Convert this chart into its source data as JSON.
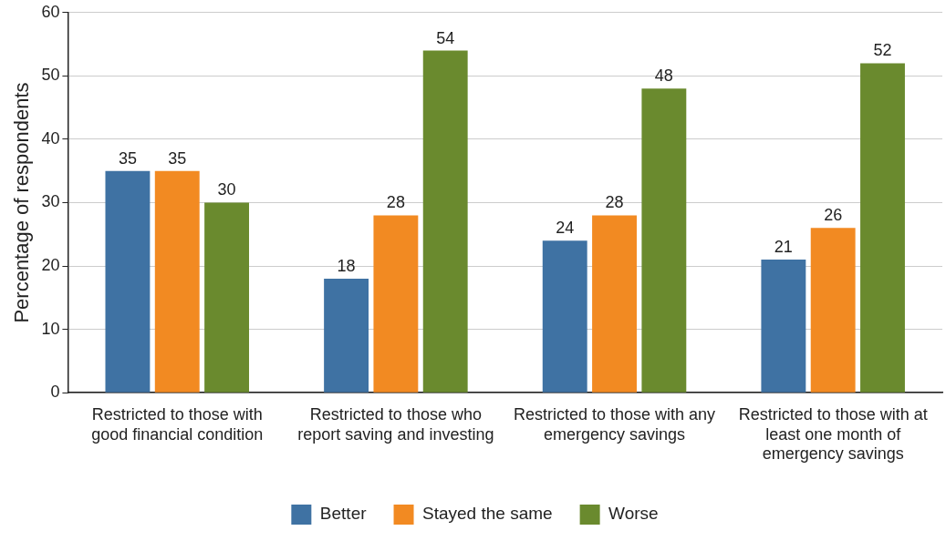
{
  "chart_data": {
    "type": "bar",
    "ylabel": "Percentage of respondents",
    "categories": [
      "Restricted to those with good financial condition",
      "Restricted to those who report saving and investing",
      "Restricted to those with any emergency savings",
      "Restricted to those with at least one month of emergency savings"
    ],
    "series": [
      {
        "name": "Better",
        "color": "#3f72a3",
        "values": [
          35,
          18,
          24,
          21
        ]
      },
      {
        "name": "Stayed the same",
        "color": "#f28a22",
        "values": [
          35,
          28,
          28,
          26
        ]
      },
      {
        "name": "Worse",
        "color": "#6a8a2e",
        "values": [
          30,
          54,
          48,
          52
        ]
      }
    ],
    "ylim": [
      0,
      60
    ],
    "yticks": [
      0,
      10,
      20,
      30,
      40,
      50,
      60
    ],
    "grid": "y",
    "legend": "bottom",
    "data_labels": true
  }
}
